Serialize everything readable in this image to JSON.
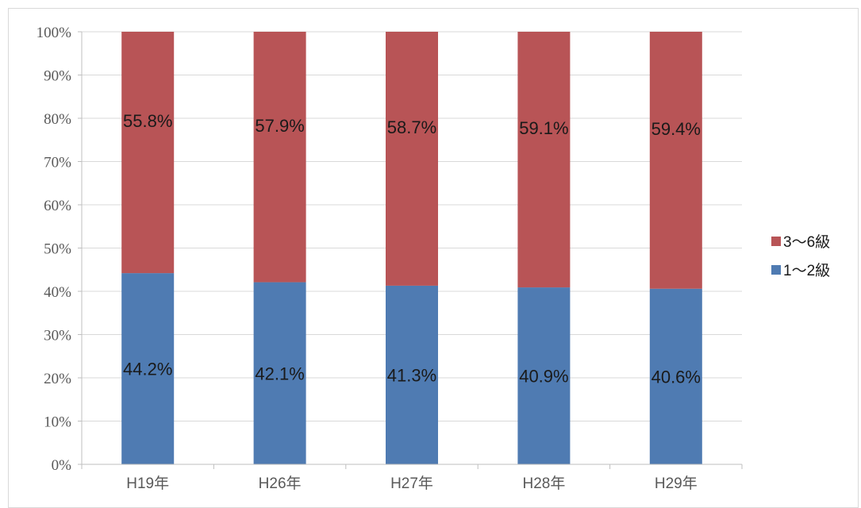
{
  "chart_data": {
    "type": "bar",
    "stacked": true,
    "percent": true,
    "categories": [
      "H19年",
      "H26年",
      "H27年",
      "H28年",
      "H29年"
    ],
    "series": [
      {
        "name": "1～2級",
        "values": [
          44.2,
          42.1,
          41.3,
          40.9,
          40.6
        ],
        "labels": [
          "44.2%",
          "42.1%",
          "41.3%",
          "40.9%",
          "40.6%"
        ],
        "color": "#4f7bb2"
      },
      {
        "name": "3～6級",
        "values": [
          55.8,
          57.9,
          58.7,
          59.1,
          59.4
        ],
        "labels": [
          "55.8%",
          "57.9%",
          "58.7%",
          "59.1%",
          "59.4%"
        ],
        "color": "#b85456"
      }
    ],
    "ylim": [
      0,
      100
    ],
    "yticks": [
      "0%",
      "10%",
      "20%",
      "30%",
      "40%",
      "50%",
      "60%",
      "70%",
      "80%",
      "90%",
      "100%"
    ],
    "grid": true,
    "legend": {
      "position": "right",
      "order": [
        "3～6級",
        "1～2級"
      ]
    }
  }
}
